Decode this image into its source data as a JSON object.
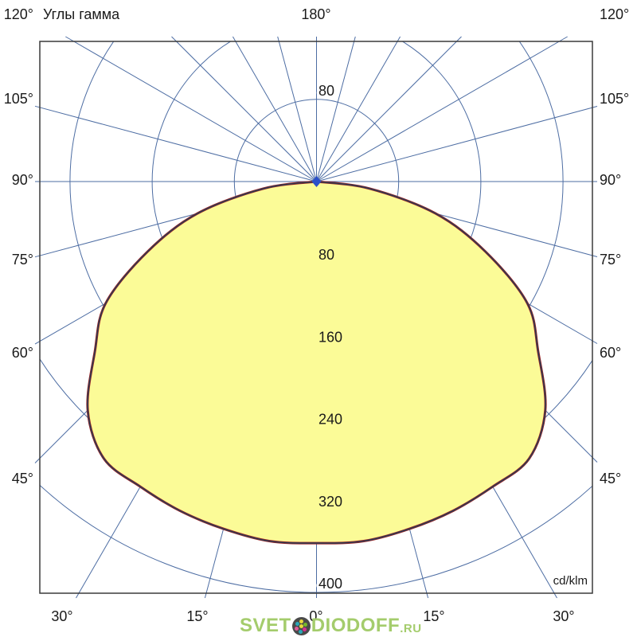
{
  "header": {
    "title": "Углы гамма",
    "top_left_corner_label": "120°",
    "top_center_label": "180°",
    "top_right_corner_label": "120°"
  },
  "axes": {
    "left_labels": [
      "105°",
      "90°",
      "75°",
      "60°",
      "45°"
    ],
    "right_labels": [
      "105°",
      "90°",
      "75°",
      "60°",
      "45°"
    ],
    "bottom_labels": [
      "30°",
      "15°",
      "0°",
      "15°",
      "30°"
    ],
    "upper_tick_label": "80",
    "units_label": "cd/klm"
  },
  "chart_data": {
    "type": "polar_intensity_curve",
    "title": "Углы гамма",
    "units": "cd/klm",
    "radial_ticks": [
      80,
      160,
      240,
      320,
      400
    ],
    "radial_max": 400,
    "angle_grid_step_deg": 15,
    "bottom_angle_labels_deg": [
      30,
      15,
      0,
      15,
      30
    ],
    "side_angle_labels_deg": [
      120,
      105,
      90,
      75,
      60,
      45
    ],
    "series": [
      {
        "name": "luminous-intensity",
        "gamma_deg": [
          -90,
          -82.5,
          -75,
          -67.5,
          -60,
          -52.5,
          -45,
          -37.5,
          -30,
          -22.5,
          -15,
          -7.5,
          0,
          7.5,
          15,
          22.5,
          30,
          37.5,
          45,
          52.5,
          60,
          67.5,
          75,
          82.5,
          90
        ],
        "values_cd_per_klm": [
          0,
          52,
          120,
          178,
          237,
          272,
          315,
          340,
          343,
          347,
          350,
          353,
          352,
          353,
          350,
          347,
          343,
          340,
          315,
          272,
          237,
          178,
          120,
          52,
          0
        ]
      }
    ],
    "colors": {
      "grid": "#4d6da3",
      "border": "#3a3a3a",
      "curve_fill": "#FBFB97",
      "curve_stroke_red": "#a02020",
      "curve_stroke_dark": "#2e3b52",
      "center_marker": "#2b50c8",
      "label_halo_inside": "#FBFB97",
      "label_halo_outside": "#ffffff"
    }
  },
  "watermark": {
    "text_before_icon": "SVET",
    "text_after_icon": "DIODOFF",
    "suffix": ".RU",
    "color": "#a4cc6c",
    "icon": "led-color-wheel-icon",
    "icon_background": "#4a4a4a",
    "icon_dot_colors": [
      "#e8d93a",
      "#76b82a",
      "#d6308f",
      "#2aa8b8",
      "#e05a9a",
      "#2aa8b8",
      "#e8d93a"
    ]
  }
}
